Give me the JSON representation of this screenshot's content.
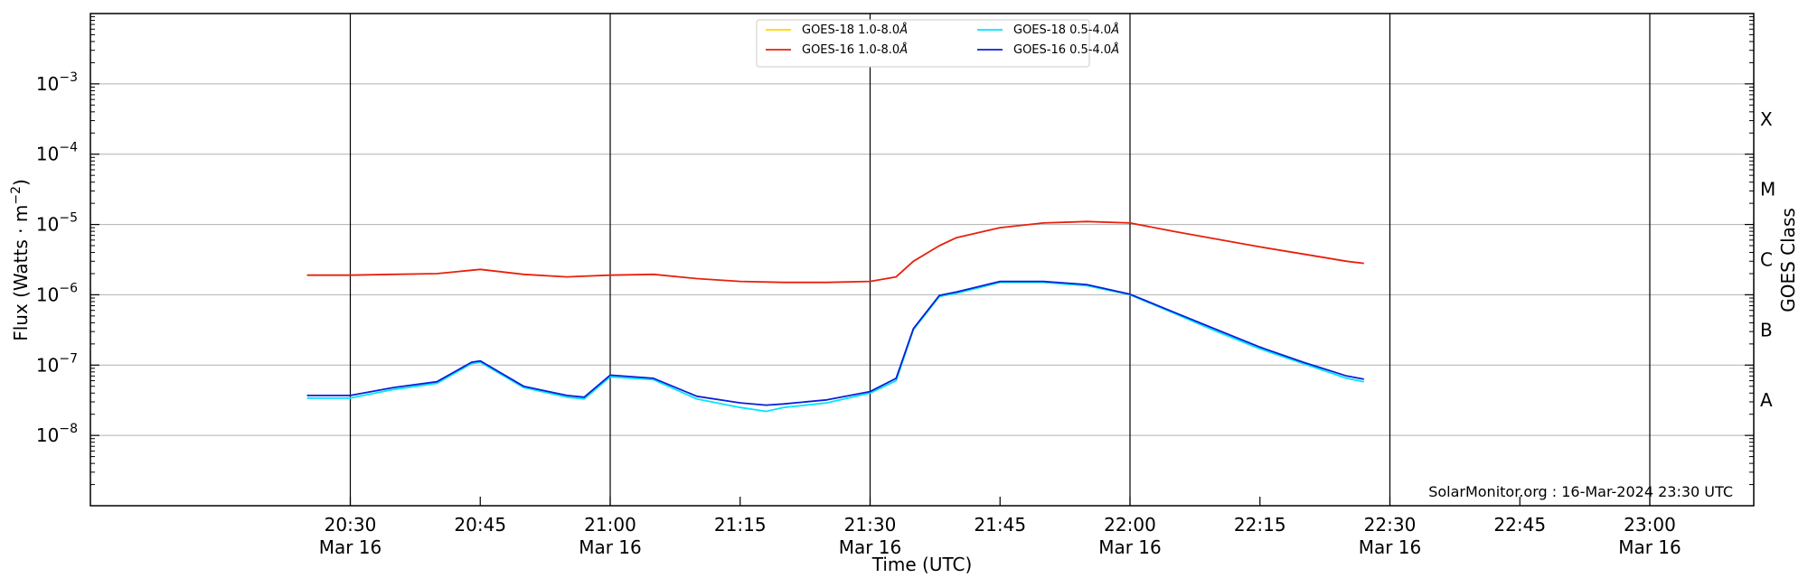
{
  "chart_data": {
    "type": "line",
    "xlabel": "Time (UTC)",
    "ylabel_main": "Flux (Watts · m",
    "ylabel_sup": "−2",
    "ylabel_close": ")",
    "right_label": "GOES Class",
    "footer": "SolarMonitor.org : 16-Mar-2024 23:30 UTC",
    "x_range_minutes": [
      20.0,
      23.2
    ],
    "y_range_log10": [
      -9,
      -2
    ],
    "y_scale": "log",
    "grid": "horizontal at decades, vertical lines every 30 min",
    "legend_position": "top-center",
    "x_ticks": [
      {
        "t": "20:30",
        "date": "Mar 16"
      },
      {
        "t": "20:45",
        "date": ""
      },
      {
        "t": "21:00",
        "date": "Mar 16"
      },
      {
        "t": "21:15",
        "date": ""
      },
      {
        "t": "21:30",
        "date": "Mar 16"
      },
      {
        "t": "21:45",
        "date": ""
      },
      {
        "t": "22:00",
        "date": "Mar 16"
      },
      {
        "t": "22:15",
        "date": ""
      },
      {
        "t": "22:30",
        "date": "Mar 16"
      },
      {
        "t": "22:45",
        "date": ""
      },
      {
        "t": "23:00",
        "date": "Mar 16"
      }
    ],
    "y_ticks": [
      {
        "base": "10",
        "exp": "−3",
        "value": 0.001
      },
      {
        "base": "10",
        "exp": "−4",
        "value": 0.0001
      },
      {
        "base": "10",
        "exp": "−5",
        "value": 1e-05
      },
      {
        "base": "10",
        "exp": "−6",
        "value": 1e-06
      },
      {
        "base": "10",
        "exp": "−7",
        "value": 1e-07
      },
      {
        "base": "10",
        "exp": "−8",
        "value": 1e-08
      }
    ],
    "goes_classes": [
      {
        "label": "X",
        "value": 0.0001
      },
      {
        "label": "M",
        "value": 1e-05
      },
      {
        "label": "C",
        "value": 1e-06
      },
      {
        "label": "B",
        "value": 1e-07
      },
      {
        "label": "A",
        "value": 1e-08
      }
    ],
    "series": [
      {
        "name": "GOES-18 1.0-8.0",
        "angstrom": "Å",
        "color": "#ffd700",
        "x": [],
        "y": []
      },
      {
        "name": "GOES-16 1.0-8.0",
        "angstrom": "Å",
        "color": "#e8200c",
        "x": [
          "20:25",
          "20:30",
          "20:35",
          "20:40",
          "20:45",
          "20:50",
          "20:55",
          "21:00",
          "21:05",
          "21:10",
          "21:15",
          "21:20",
          "21:25",
          "21:30",
          "21:33",
          "21:35",
          "21:38",
          "21:40",
          "21:45",
          "21:50",
          "21:55",
          "22:00",
          "22:05",
          "22:10",
          "22:15",
          "22:20",
          "22:25",
          "22:27"
        ],
        "y": [
          1.9e-06,
          1.9e-06,
          1.95e-06,
          2e-06,
          2.3e-06,
          1.95e-06,
          1.8e-06,
          1.9e-06,
          1.95e-06,
          1.7e-06,
          1.55e-06,
          1.5e-06,
          1.5e-06,
          1.55e-06,
          1.8e-06,
          3e-06,
          5e-06,
          6.5e-06,
          9e-06,
          1.05e-05,
          1.1e-05,
          1.05e-05,
          8e-06,
          6.2e-06,
          4.8e-06,
          3.8e-06,
          3e-06,
          2.8e-06
        ]
      },
      {
        "name": "GOES-18 0.5-4.0",
        "angstrom": "Å",
        "color": "#00e5ff",
        "x": [
          "20:25",
          "20:30",
          "20:35",
          "20:40",
          "20:44",
          "20:45",
          "20:50",
          "20:55",
          "20:57",
          "21:00",
          "21:05",
          "21:10",
          "21:15",
          "21:18",
          "21:20",
          "21:25",
          "21:30",
          "21:33",
          "21:35",
          "21:38",
          "21:40",
          "21:45",
          "21:50",
          "21:55",
          "22:00",
          "22:05",
          "22:10",
          "22:15",
          "22:20",
          "22:25",
          "22:27"
        ],
        "y": [
          3.4e-08,
          3.4e-08,
          4.5e-08,
          5.5e-08,
          1.05e-07,
          1.1e-07,
          4.8e-08,
          3.5e-08,
          3.3e-08,
          6.8e-08,
          6.2e-08,
          3.3e-08,
          2.5e-08,
          2.2e-08,
          2.5e-08,
          2.9e-08,
          4e-08,
          6e-08,
          3.2e-07,
          9.5e-07,
          1.05e-06,
          1.5e-06,
          1.5e-06,
          1.35e-06,
          1e-06,
          5.5e-07,
          3e-07,
          1.7e-07,
          1.05e-07,
          6.5e-08,
          5.8e-08
        ]
      },
      {
        "name": "GOES-16 0.5-4.0",
        "angstrom": "Å",
        "color": "#0a20d8",
        "x": [
          "20:25",
          "20:30",
          "20:35",
          "20:40",
          "20:44",
          "20:45",
          "20:50",
          "20:55",
          "20:57",
          "21:00",
          "21:05",
          "21:10",
          "21:15",
          "21:18",
          "21:20",
          "21:25",
          "21:30",
          "21:33",
          "21:35",
          "21:38",
          "21:40",
          "21:45",
          "21:50",
          "21:55",
          "22:00",
          "22:05",
          "22:10",
          "22:15",
          "22:20",
          "22:25",
          "22:27"
        ],
        "y": [
          3.7e-08,
          3.7e-08,
          4.8e-08,
          5.8e-08,
          1.1e-07,
          1.15e-07,
          5e-08,
          3.7e-08,
          3.5e-08,
          7.2e-08,
          6.5e-08,
          3.6e-08,
          2.9e-08,
          2.7e-08,
          2.8e-08,
          3.2e-08,
          4.2e-08,
          6.5e-08,
          3.3e-07,
          9.8e-07,
          1.1e-06,
          1.55e-06,
          1.55e-06,
          1.4e-06,
          1.02e-06,
          5.7e-07,
          3.2e-07,
          1.8e-07,
          1.1e-07,
          7e-08,
          6.3e-08
        ]
      }
    ]
  }
}
